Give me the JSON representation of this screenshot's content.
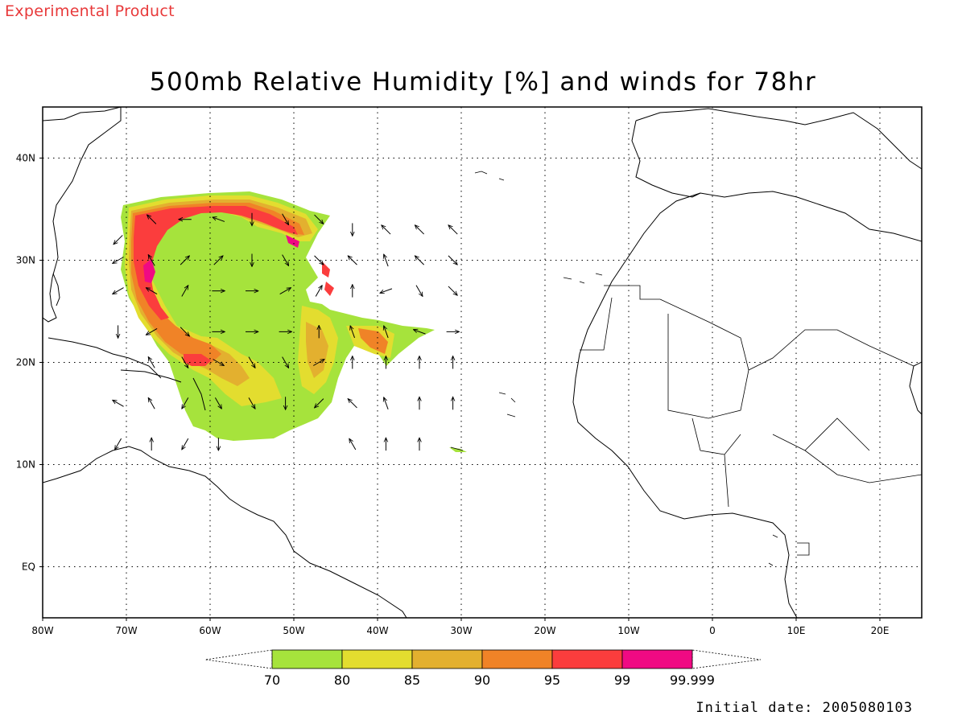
{
  "header": {
    "watermark": "Experimental Product",
    "title": "500mb Relative Humidity [%] and winds for 78hr"
  },
  "footer": {
    "initial_date": "Initial date: 2005080103"
  },
  "map": {
    "lon_range": [
      -80,
      25
    ],
    "lat_range": [
      -5,
      45
    ],
    "lon_ticks": [
      {
        "lon": -80,
        "label": "80W"
      },
      {
        "lon": -70,
        "label": "70W"
      },
      {
        "lon": -60,
        "label": "60W"
      },
      {
        "lon": -50,
        "label": "50W"
      },
      {
        "lon": -40,
        "label": "40W"
      },
      {
        "lon": -30,
        "label": "30W"
      },
      {
        "lon": -20,
        "label": "20W"
      },
      {
        "lon": -10,
        "label": "10W"
      },
      {
        "lon": 0,
        "label": "0"
      },
      {
        "lon": 10,
        "label": "10E"
      },
      {
        "lon": 20,
        "label": "20E"
      }
    ],
    "lat_ticks": [
      {
        "lat": 40,
        "label": "40N"
      },
      {
        "lat": 30,
        "label": "30N"
      },
      {
        "lat": 20,
        "label": "20N"
      },
      {
        "lat": 10,
        "label": "10N"
      },
      {
        "lat": 0,
        "label": "EQ"
      }
    ],
    "grid_lons": [
      -70,
      -60,
      -50,
      -40,
      -30,
      -20,
      -10,
      0,
      10,
      20
    ],
    "grid_lats": [
      40,
      30,
      20,
      10,
      0
    ]
  },
  "colorbar": {
    "colors": [
      "#a6e33c",
      "#e3dd2f",
      "#e3b02f",
      "#f08327",
      "#fb3d3d",
      "#f00a83"
    ],
    "labels": [
      "70",
      "80",
      "85",
      "90",
      "95",
      "99",
      "99.999"
    ]
  },
  "wind_vectors": [
    {
      "lon": -71,
      "lat": 32,
      "dir": 135
    },
    {
      "lon": -67,
      "lat": 34,
      "dir": 225
    },
    {
      "lon": -63,
      "lat": 34,
      "dir": 180
    },
    {
      "lon": -59,
      "lat": 34,
      "dir": 200
    },
    {
      "lon": -55,
      "lat": 34,
      "dir": 90
    },
    {
      "lon": -51,
      "lat": 34,
      "dir": 60
    },
    {
      "lon": -47,
      "lat": 34,
      "dir": 45
    },
    {
      "lon": -43,
      "lat": 33,
      "dir": 90
    },
    {
      "lon": -39,
      "lat": 33,
      "dir": 225
    },
    {
      "lon": -35,
      "lat": 33,
      "dir": 225
    },
    {
      "lon": -31,
      "lat": 33,
      "dir": 225
    },
    {
      "lon": -71,
      "lat": 30,
      "dir": 150
    },
    {
      "lon": -67,
      "lat": 30,
      "dir": 240
    },
    {
      "lon": -63,
      "lat": 30,
      "dir": 315
    },
    {
      "lon": -59,
      "lat": 30,
      "dir": 315
    },
    {
      "lon": -55,
      "lat": 30,
      "dir": 90
    },
    {
      "lon": -51,
      "lat": 30,
      "dir": 60
    },
    {
      "lon": -47,
      "lat": 30,
      "dir": 45
    },
    {
      "lon": -43,
      "lat": 30,
      "dir": 225
    },
    {
      "lon": -39,
      "lat": 30,
      "dir": 250
    },
    {
      "lon": -35,
      "lat": 30,
      "dir": 225
    },
    {
      "lon": -31,
      "lat": 30,
      "dir": 45
    },
    {
      "lon": -71,
      "lat": 27,
      "dir": 150
    },
    {
      "lon": -67,
      "lat": 27,
      "dir": 210
    },
    {
      "lon": -63,
      "lat": 27,
      "dir": 300
    },
    {
      "lon": -59,
      "lat": 27,
      "dir": 0
    },
    {
      "lon": -55,
      "lat": 27,
      "dir": 0
    },
    {
      "lon": -51,
      "lat": 27,
      "dir": 330
    },
    {
      "lon": -47,
      "lat": 27,
      "dir": 300
    },
    {
      "lon": -43,
      "lat": 27,
      "dir": 270
    },
    {
      "lon": -39,
      "lat": 27,
      "dir": 160
    },
    {
      "lon": -35,
      "lat": 27,
      "dir": 60
    },
    {
      "lon": -31,
      "lat": 27,
      "dir": 45
    },
    {
      "lon": -71,
      "lat": 23,
      "dir": 90
    },
    {
      "lon": -67,
      "lat": 23,
      "dir": 150
    },
    {
      "lon": -63,
      "lat": 23,
      "dir": 45
    },
    {
      "lon": -59,
      "lat": 23,
      "dir": 0
    },
    {
      "lon": -55,
      "lat": 23,
      "dir": 0
    },
    {
      "lon": -51,
      "lat": 23,
      "dir": 0
    },
    {
      "lon": -47,
      "lat": 23,
      "dir": 270
    },
    {
      "lon": -43,
      "lat": 23,
      "dir": 250
    },
    {
      "lon": -39,
      "lat": 23,
      "dir": 250
    },
    {
      "lon": -35,
      "lat": 23,
      "dir": 200
    },
    {
      "lon": -31,
      "lat": 23,
      "dir": 0
    },
    {
      "lon": -67,
      "lat": 20,
      "dir": 240
    },
    {
      "lon": -63,
      "lat": 20,
      "dir": 60
    },
    {
      "lon": -59,
      "lat": 20,
      "dir": 30
    },
    {
      "lon": -55,
      "lat": 20,
      "dir": 60
    },
    {
      "lon": -51,
      "lat": 20,
      "dir": 60
    },
    {
      "lon": -47,
      "lat": 20,
      "dir": 330
    },
    {
      "lon": -43,
      "lat": 20,
      "dir": 270
    },
    {
      "lon": -39,
      "lat": 20,
      "dir": 270
    },
    {
      "lon": -35,
      "lat": 20,
      "dir": 270
    },
    {
      "lon": -31,
      "lat": 20,
      "dir": 270
    },
    {
      "lon": -71,
      "lat": 16,
      "dir": 210
    },
    {
      "lon": -67,
      "lat": 16,
      "dir": 240
    },
    {
      "lon": -63,
      "lat": 16,
      "dir": 120
    },
    {
      "lon": -59,
      "lat": 16,
      "dir": 60
    },
    {
      "lon": -55,
      "lat": 16,
      "dir": 60
    },
    {
      "lon": -51,
      "lat": 16,
      "dir": 90
    },
    {
      "lon": -47,
      "lat": 16,
      "dir": 135
    },
    {
      "lon": -43,
      "lat": 16,
      "dir": 225
    },
    {
      "lon": -39,
      "lat": 16,
      "dir": 250
    },
    {
      "lon": -35,
      "lat": 16,
      "dir": 270
    },
    {
      "lon": -31,
      "lat": 16,
      "dir": 270
    },
    {
      "lon": -71,
      "lat": 12,
      "dir": 120
    },
    {
      "lon": -67,
      "lat": 12,
      "dir": 270
    },
    {
      "lon": -63,
      "lat": 12,
      "dir": 120
    },
    {
      "lon": -59,
      "lat": 12,
      "dir": 90
    },
    {
      "lon": -43,
      "lat": 12,
      "dir": 240
    },
    {
      "lon": -39,
      "lat": 12,
      "dir": 270
    },
    {
      "lon": -35,
      "lat": 12,
      "dir": 270
    }
  ]
}
